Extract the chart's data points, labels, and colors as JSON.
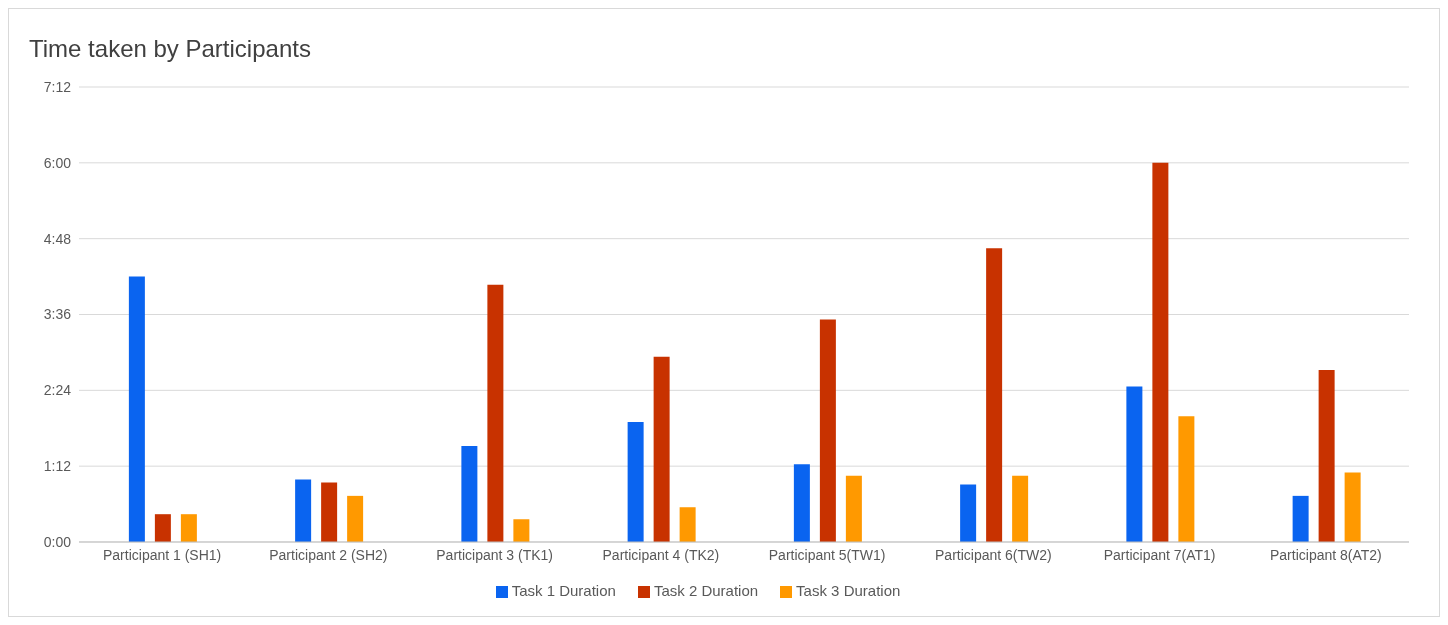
{
  "chart_data": {
    "type": "bar",
    "title": "Time taken by Participants",
    "categories": [
      "Participant 1 (SH1)",
      "Participant 2 (SH2)",
      "Participant 3 (TK1)",
      "Participant 4 (TK2)",
      "Participant 5(TW1)",
      "Participant 6(TW2)",
      "Participant 7(AT1)",
      "Participant 8(AT2)"
    ],
    "series": [
      {
        "name": "Task 1 Duration",
        "color": "#0a64f0",
        "values": [
          4.2,
          0.99,
          1.52,
          1.9,
          1.23,
          0.91,
          2.46,
          0.73
        ]
      },
      {
        "name": "Task 2 Duration",
        "color": "#c83200",
        "values": [
          0.44,
          0.94,
          4.07,
          2.93,
          3.52,
          4.65,
          6.0,
          2.72
        ]
      },
      {
        "name": "Task 3 Duration",
        "color": "#ff9900",
        "values": [
          0.44,
          0.73,
          0.36,
          0.55,
          1.05,
          1.05,
          1.99,
          1.1
        ]
      }
    ],
    "ylim": [
      0,
      7.2
    ],
    "yticks": [
      {
        "value": 0,
        "label": "0:00"
      },
      {
        "value": 1.2,
        "label": "1:12"
      },
      {
        "value": 2.4,
        "label": "2:24"
      },
      {
        "value": 3.6,
        "label": "3:36"
      },
      {
        "value": 4.8,
        "label": "4:48"
      },
      {
        "value": 6,
        "label": "6:00"
      },
      {
        "value": 7.2,
        "label": "7:12"
      }
    ],
    "grid": "y",
    "legend": "bottom"
  }
}
